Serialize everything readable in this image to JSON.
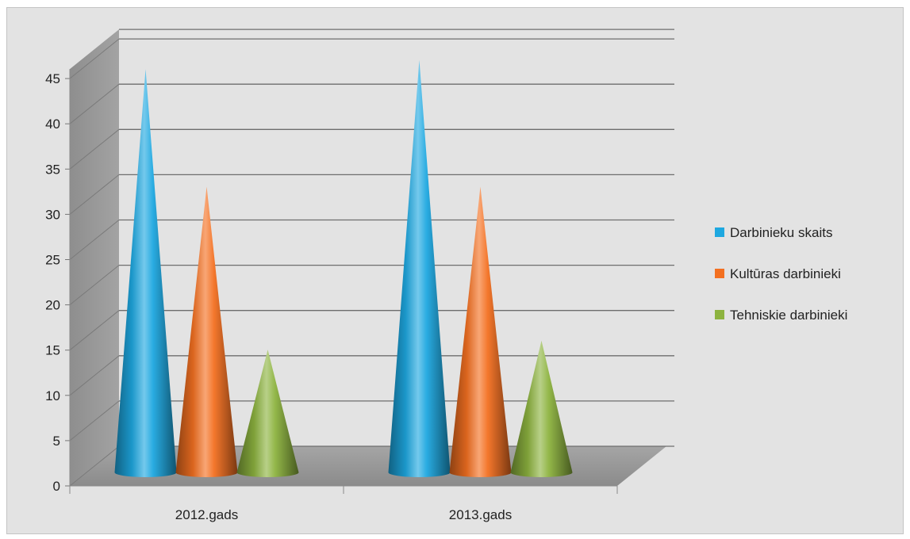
{
  "chart_data": {
    "type": "bar",
    "subtype": "3d-cone",
    "title": "",
    "xlabel": "",
    "ylabel": "",
    "categories": [
      "2012.gads",
      "2013.gads"
    ],
    "yticks": [
      "0",
      "5",
      "10",
      "15",
      "20",
      "25",
      "30",
      "35",
      "40",
      "45"
    ],
    "ylim": [
      0,
      45
    ],
    "grid": true,
    "legend_position": "right",
    "series": [
      {
        "name": "Darbinieku skaits",
        "values": [
          45,
          46
        ],
        "color": "#1ea8e0"
      },
      {
        "name": "Kultūras darbinieki",
        "values": [
          32,
          32
        ],
        "color": "#f37021"
      },
      {
        "name": "Tehniskie darbinieki",
        "values": [
          14,
          15
        ],
        "color": "#8db33f"
      }
    ]
  }
}
